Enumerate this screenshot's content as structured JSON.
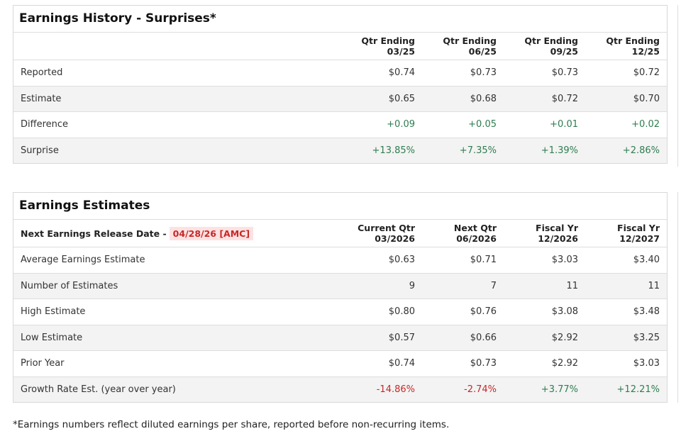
{
  "history": {
    "title": "Earnings History - Surprises*",
    "columns": [
      [
        "Qtr Ending",
        "03/25"
      ],
      [
        "Qtr Ending",
        "06/25"
      ],
      [
        "Qtr Ending",
        "09/25"
      ],
      [
        "Qtr Ending",
        "12/25"
      ]
    ],
    "rows": [
      {
        "label": "Reported",
        "values": [
          "$0.74",
          "$0.73",
          "$0.73",
          "$0.72"
        ],
        "tone": ""
      },
      {
        "label": "Estimate",
        "values": [
          "$0.65",
          "$0.68",
          "$0.72",
          "$0.70"
        ],
        "tone": ""
      },
      {
        "label": "Difference",
        "values": [
          "+0.09",
          "+0.05",
          "+0.01",
          "+0.02"
        ],
        "tone": "pos"
      },
      {
        "label": "Surprise",
        "values": [
          "+13.85%",
          "+7.35%",
          "+1.39%",
          "+2.86%"
        ],
        "tone": "pos"
      }
    ]
  },
  "estimates": {
    "title": "Earnings Estimates",
    "release_label": "Next Earnings Release Date -",
    "release_date": "04/28/26 [AMC]",
    "columns": [
      [
        "Current Qtr",
        "03/2026"
      ],
      [
        "Next Qtr",
        "06/2026"
      ],
      [
        "Fiscal Yr",
        "12/2026"
      ],
      [
        "Fiscal Yr",
        "12/2027"
      ]
    ],
    "rows": [
      {
        "label": "Average Earnings Estimate",
        "values": [
          "$0.63",
          "$0.71",
          "$3.03",
          "$3.40"
        ]
      },
      {
        "label": "Number of Estimates",
        "values": [
          "9",
          "7",
          "11",
          "11"
        ]
      },
      {
        "label": "High Estimate",
        "values": [
          "$0.80",
          "$0.76",
          "$3.08",
          "$3.48"
        ]
      },
      {
        "label": "Low Estimate",
        "values": [
          "$0.57",
          "$0.66",
          "$2.92",
          "$3.25"
        ]
      },
      {
        "label": "Prior Year",
        "values": [
          "$0.74",
          "$0.73",
          "$2.92",
          "$3.03"
        ]
      },
      {
        "label": "Growth Rate Est. (year over year)",
        "values": [
          "-14.86%",
          "-2.74%",
          "+3.77%",
          "+12.21%"
        ]
      }
    ]
  },
  "footnote": "*Earnings numbers reflect diluted earnings per share, reported before non-recurring items.",
  "colors": {
    "positive": "#2e7d50",
    "negative": "#c62828",
    "badge_bg": "#fde2e2"
  }
}
